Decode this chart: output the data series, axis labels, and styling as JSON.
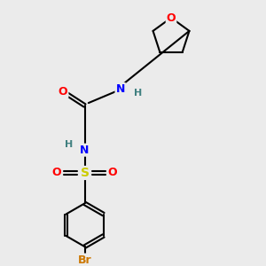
{
  "bg_color": "#ebebeb",
  "bond_color": "#000000",
  "atom_colors": {
    "O": "#ff0000",
    "N": "#0000ff",
    "S": "#cccc00",
    "Br": "#cc7700",
    "H": "#408080",
    "C": "#000000"
  }
}
